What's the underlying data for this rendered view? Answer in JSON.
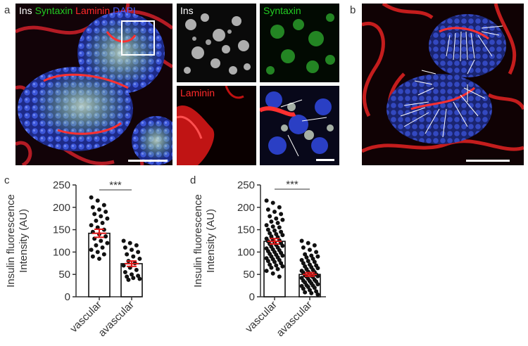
{
  "panels": {
    "a": {
      "letter": "a",
      "merged_channels": [
        {
          "name": "Ins",
          "color": "#ffffff"
        },
        {
          "name": "Syntaxin",
          "color": "#22cc22"
        },
        {
          "name": "Laminin",
          "color": "#ff2a2a"
        },
        {
          "name": "DAPI",
          "color": "#4a5cff"
        }
      ],
      "insets": {
        "ins": "Ins",
        "syntaxin": "Syntaxin",
        "laminin": "Laminin"
      }
    },
    "b": {
      "letter": "b"
    },
    "c": {
      "letter": "c"
    },
    "d": {
      "letter": "d"
    }
  },
  "chart_data": [
    {
      "type": "bar",
      "panel": "c",
      "categories": [
        "vascular",
        "avascular"
      ],
      "values": [
        142,
        74
      ],
      "sem": [
        9,
        6
      ],
      "ylabel": "Insulin fluorescence Intensity (AU)",
      "ylim": [
        0,
        250
      ],
      "yticks": [
        "0",
        "50",
        "100",
        "150",
        "200",
        "250"
      ],
      "significance": "***",
      "points": {
        "vascular": [
          222,
          215,
          205,
          200,
          195,
          190,
          185,
          180,
          175,
          170,
          165,
          160,
          155,
          150,
          145,
          140,
          135,
          130,
          125,
          120,
          115,
          110,
          105,
          100,
          95,
          90,
          85
        ],
        "avascular": [
          125,
          120,
          115,
          110,
          105,
          100,
          95,
          90,
          85,
          80,
          75,
          70,
          65,
          60,
          55,
          50,
          47,
          45,
          42,
          40,
          38
        ]
      }
    },
    {
      "type": "bar",
      "panel": "d",
      "categories": [
        "vascular",
        "avascular"
      ],
      "values": [
        124,
        50
      ],
      "sem": [
        6,
        4
      ],
      "ylabel": "Insulin fluorescence Intensity (AU)",
      "ylim": [
        0,
        250
      ],
      "yticks": [
        "0",
        "50",
        "100",
        "150",
        "200",
        "250"
      ],
      "significance": "***",
      "points": {
        "vascular": [
          215,
          210,
          200,
          195,
          190,
          185,
          180,
          175,
          172,
          168,
          165,
          160,
          157,
          155,
          150,
          148,
          145,
          142,
          140,
          138,
          135,
          133,
          130,
          128,
          126,
          124,
          122,
          120,
          118,
          116,
          114,
          112,
          110,
          108,
          106,
          104,
          102,
          100,
          98,
          96,
          94,
          92,
          90,
          88,
          86,
          84,
          82,
          80,
          78,
          75,
          72,
          70,
          68,
          65,
          62,
          58,
          52,
          45
        ],
        "avascular": [
          125,
          120,
          115,
          110,
          105,
          100,
          95,
          92,
          90,
          88,
          85,
          82,
          80,
          78,
          75,
          72,
          70,
          68,
          66,
          64,
          62,
          60,
          58,
          56,
          55,
          54,
          52,
          50,
          48,
          47,
          46,
          45,
          44,
          42,
          40,
          38,
          36,
          35,
          34,
          32,
          30,
          28,
          26,
          25,
          24,
          22,
          20,
          18,
          15,
          12,
          10,
          8,
          5
        ]
      }
    }
  ]
}
